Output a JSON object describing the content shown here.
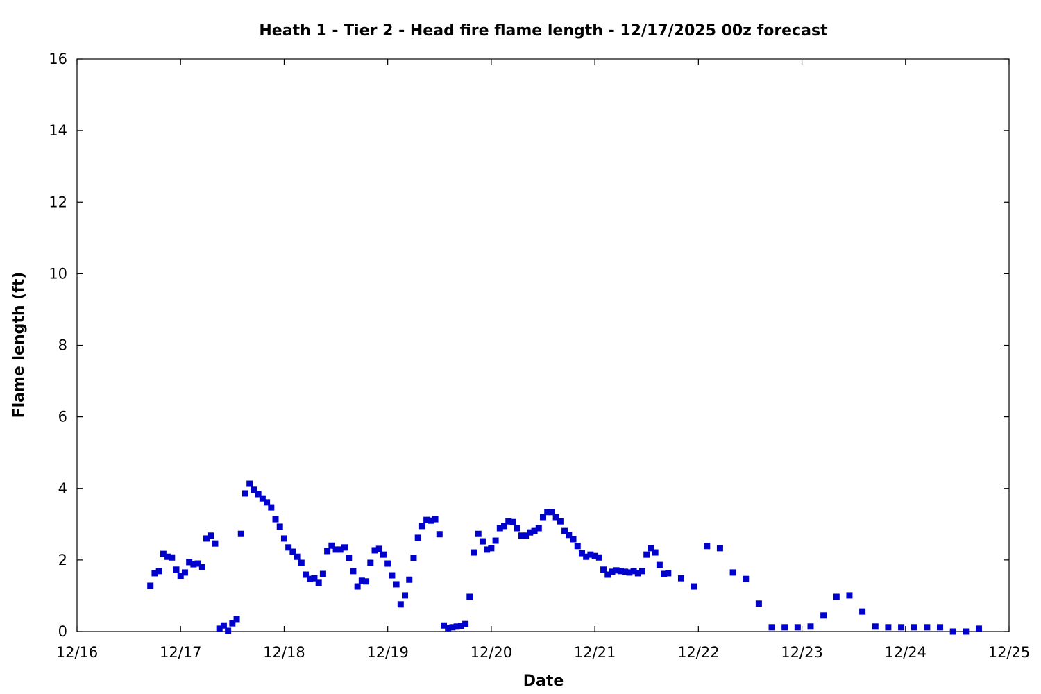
{
  "chart_data": {
    "type": "scatter",
    "title": "Heath 1 - Tier 2 - Head fire flame length - 12/17/2025 00z forecast",
    "xlabel": "Date",
    "ylabel": "Flame length (ft)",
    "xlim": [
      "2025-12-16T00:00",
      "2025-12-25T00:00"
    ],
    "ylim": [
      0,
      16
    ],
    "x_tick_labels": [
      "12/16",
      "12/17",
      "12/18",
      "12/19",
      "12/20",
      "12/21",
      "12/22",
      "12/23",
      "12/24",
      "12/25"
    ],
    "y_ticks": [
      0,
      2,
      4,
      6,
      8,
      10,
      12,
      14,
      16
    ],
    "grid": false,
    "marker_color": "#0000cc",
    "marker": "square",
    "series": [
      {
        "start": "2025-12-16T17:00",
        "step_hours": 1,
        "values": [
          1.28,
          1.63,
          1.69,
          2.17,
          2.09,
          2.07,
          1.73,
          1.55,
          1.65,
          1.94,
          1.88,
          1.9,
          1.8,
          2.6,
          2.68,
          2.46,
          0.08,
          0.17,
          0.02,
          0.23,
          0.35,
          2.73,
          3.86,
          4.13,
          3.96,
          3.84,
          3.72,
          3.61,
          3.47,
          3.14,
          2.93,
          2.6,
          2.35,
          2.23,
          2.09,
          1.92,
          1.59,
          1.47,
          1.49,
          1.36,
          1.61,
          2.25,
          2.4,
          2.29,
          2.29,
          2.35,
          2.06,
          1.69,
          1.26,
          1.42,
          1.4,
          1.92,
          2.27,
          2.31,
          2.15,
          1.9,
          1.57,
          1.32,
          0.76,
          1.01,
          1.45,
          2.06,
          2.62,
          2.95,
          3.12,
          3.1,
          3.14,
          2.72,
          0.17,
          0.1,
          0.12,
          0.14,
          0.16,
          0.21,
          0.97,
          2.21,
          2.73,
          2.52,
          2.29,
          2.33,
          2.54,
          2.89,
          2.95,
          3.08,
          3.06,
          2.89,
          2.68,
          2.68,
          2.77,
          2.81,
          2.89,
          3.2,
          3.34,
          3.34,
          3.2,
          3.08,
          2.81,
          2.7,
          2.58,
          2.39,
          2.19,
          2.09,
          2.15,
          2.11,
          2.07,
          1.73,
          1.59,
          1.67,
          1.71,
          1.69,
          1.67,
          1.65,
          1.69,
          1.63,
          1.69,
          2.15,
          2.33,
          2.21,
          1.86,
          1.61,
          1.63
        ]
      },
      {
        "start": "2025-12-21T20:00",
        "step_hours": 3,
        "values": [
          1.49,
          1.26,
          2.39,
          2.33,
          1.65,
          1.47,
          0.78,
          0.12,
          0.12,
          0.12,
          0.14,
          0.45,
          0.97,
          1.01,
          0.56,
          0.14,
          0.12,
          0.12,
          0.12,
          0.12,
          0.12,
          0.0,
          0.0,
          0.08
        ]
      }
    ]
  }
}
